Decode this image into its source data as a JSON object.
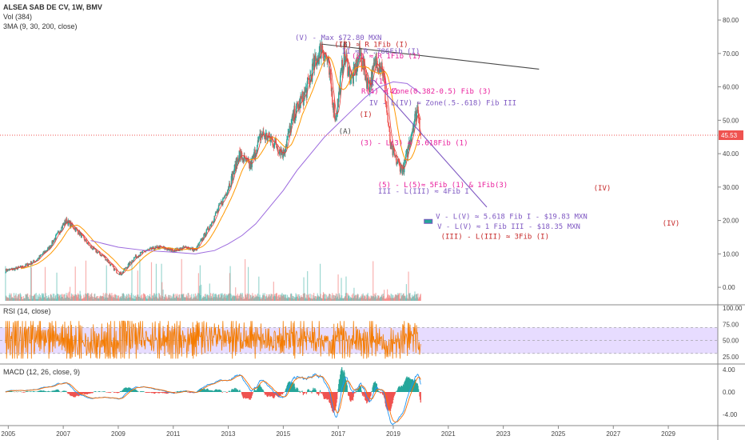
{
  "header": {
    "symbol_line": "ALSEA SAB DE CV, 1W, BMV",
    "vol_line": "Vol (384)",
    "ma_line": "3MA (9, 30, 200, close)"
  },
  "rsi_label": "RSI (14, close)",
  "macd_label": "MACD (12, 26, close, 9)",
  "colors": {
    "up": "#26a69a",
    "down": "#ef5350",
    "ma9": "#e53935",
    "ma30": "#ff9800",
    "ma200": "#9c6ade",
    "rsi": "#f57c00",
    "rsi_band": "#e7dcff",
    "macd": "#2196f3",
    "signal": "#ff6d00",
    "hline": "#ef5350",
    "wave_purple": "#7e57c2",
    "wave_red": "#c62828",
    "wave_pink": "#e91e9c",
    "trend_line": "#4a4a4a"
  },
  "chart_data": [
    {
      "type": "line",
      "title": "ALSEA SAB DE CV, 1W, BMV",
      "x_ticks": [
        "2005",
        "2007",
        "2009",
        "2011",
        "2013",
        "2015",
        "2017",
        "2019",
        "2021",
        "2023",
        "2025",
        "2027",
        "2029"
      ],
      "y_ticks": [
        "0.00",
        "10.00",
        "20.00",
        "30.00",
        "40.00",
        "50.00",
        "60.00",
        "70.00",
        "80.00"
      ],
      "ylim": [
        -5,
        86
      ],
      "xlim": [
        2004.7,
        2030.8
      ],
      "price_tag": "45.53",
      "last_price": 45.53,
      "series": [
        {
          "name": "close",
          "x": [
            2004.9,
            2005.5,
            2006.0,
            2006.5,
            2006.8,
            2007.1,
            2007.5,
            2008.0,
            2008.5,
            2008.9,
            2009.1,
            2009.6,
            2010.0,
            2010.5,
            2011.0,
            2011.5,
            2011.8,
            2012.3,
            2012.8,
            2013.1,
            2013.4,
            2013.8,
            2014.2,
            2014.6,
            2015.0,
            2015.4,
            2015.8,
            2016.1,
            2016.4,
            2016.6,
            2016.9,
            2017.2,
            2017.5,
            2017.8,
            2018.1,
            2018.4,
            2018.6,
            2018.9,
            2019.1,
            2019.35,
            2019.5,
            2019.7,
            2019.9,
            2020.0
          ],
          "values": [
            5,
            6,
            8,
            12,
            16,
            20,
            17,
            12,
            9,
            5,
            4,
            9,
            11,
            12,
            11,
            12,
            11,
            18,
            26,
            32,
            40,
            36,
            46,
            44,
            40,
            52,
            58,
            66,
            72,
            68,
            50,
            70,
            62,
            70,
            60,
            68,
            66,
            42,
            38,
            35,
            40,
            48,
            54,
            45.53
          ]
        },
        {
          "name": "MA 200",
          "x": [
            2008.0,
            2009.0,
            2010.0,
            2011.0,
            2011.8,
            2012.5,
            2013.0,
            2013.5,
            2014.0,
            2014.5,
            2015.0,
            2015.5,
            2016.0,
            2016.5,
            2017.0,
            2017.5,
            2018.0,
            2018.5,
            2019.0,
            2019.5,
            2020.0
          ],
          "values": [
            14,
            12,
            11,
            10.5,
            10,
            11,
            13,
            15.5,
            19,
            24,
            29,
            35,
            40,
            45,
            49,
            53,
            57,
            60,
            61.5,
            61,
            58
          ]
        }
      ],
      "annotations": [
        {
          "text": "(V) -  Max $72.80 MXN",
          "x": 2017.0,
          "y": 74.0,
          "color": "wave_purple"
        },
        {
          "text": "(B)",
          "x": 2017.25,
          "y": 72.0,
          "color": "trend_line"
        },
        {
          "text": "(II) ≈ R 1Fib (I)",
          "x": 2018.2,
          "y": 72.0,
          "color": "wave_red"
        },
        {
          "text": "II ≈ R .786Fib (I)",
          "x": 2018.55,
          "y": 70.0,
          "color": "wave_purple"
        },
        {
          "text": "(2) ≈ R 1Fib (1)",
          "x": 2018.75,
          "y": 68.5,
          "color": "wave_pink"
        },
        {
          "text": "I",
          "x": 2018.25,
          "y": 60.5,
          "color": "wave_purple"
        },
        {
          "text": "(1)",
          "x": 2018.55,
          "y": 61.0,
          "color": "wave_pink"
        },
        {
          "text": "(4)",
          "x": 2018.95,
          "y": 58.0,
          "color": "wave_pink"
        },
        {
          "text": "R(4) ≈ Zone(0.382-0.5) Fib (3)",
          "x": 2020.2,
          "y": 58.0,
          "color": "wave_pink"
        },
        {
          "text": "IV - L(IV) ≈ Zone(.5-.618) Fib III",
          "x": 2020.8,
          "y": 54.5,
          "color": "wave_purple"
        },
        {
          "text": "(I)",
          "x": 2018.0,
          "y": 51.0,
          "color": "wave_red"
        },
        {
          "text": "(A)",
          "x": 2017.25,
          "y": 46.0,
          "color": "trend_line"
        },
        {
          "text": "(3) - L(3) ≈ 3.618Fib (1)",
          "x": 2019.75,
          "y": 42.5,
          "color": "wave_pink"
        },
        {
          "text": "(5) - L(5)≈ 5Fib (1) & 1Fib(3)",
          "x": 2020.8,
          "y": 30.0,
          "color": "wave_pink"
        },
        {
          "text": "III - L(III) ≈ 4Fib I",
          "x": 2020.1,
          "y": 28.0,
          "color": "wave_purple"
        },
        {
          "text": "(IV)",
          "x": 2026.6,
          "y": 29.0,
          "color": "wave_red"
        },
        {
          "text": "V - L(V) ≈ 5.618 Fib I - $19.83 MXN",
          "x": 2023.3,
          "y": 20.5,
          "color": "wave_purple"
        },
        {
          "text": "V - L(V) ≈ 1 Fib III - $18.35 MXN",
          "x": 2023.2,
          "y": 17.5,
          "color": "wave_purple"
        },
        {
          "text": "(III) - L(III) ≈ 3Fib (I)",
          "x": 2022.7,
          "y": 14.5,
          "color": "wave_red"
        },
        {
          "text": "(IV)",
          "x": 2029.1,
          "y": 18.5,
          "color": "wave_red"
        }
      ],
      "trend_lines": [
        {
          "x": [
            2016.4,
            2024.3
          ],
          "values": [
            72.8,
            65.3
          ],
          "color": "trend_line"
        },
        {
          "x": [
            2018.3,
            2022.4
          ],
          "values": [
            62.0,
            24.0
          ],
          "color": "wave_purple"
        }
      ]
    },
    {
      "type": "line",
      "title": "RSI (14, close)",
      "y_ticks": [
        "100.00",
        "75.00",
        "50.00",
        "25.00"
      ],
      "ylim": [
        15,
        105
      ],
      "band": [
        30,
        70
      ]
    },
    {
      "type": "line",
      "title": "MACD (12, 26, close, 9)",
      "y_ticks": [
        "4.00",
        "0.00",
        "-4.00"
      ],
      "ylim": [
        -6,
        5
      ]
    }
  ]
}
